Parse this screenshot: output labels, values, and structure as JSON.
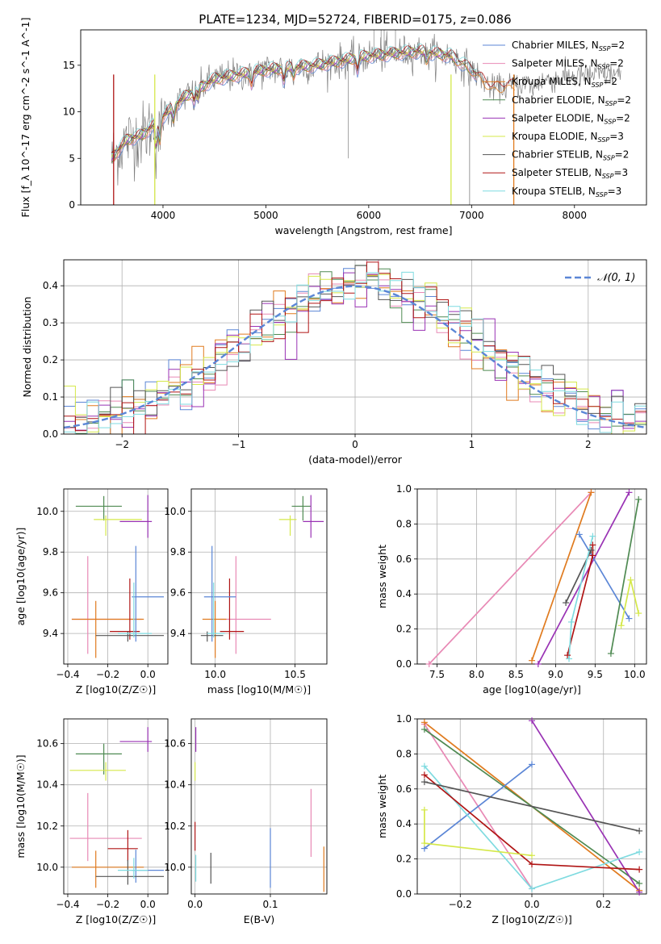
{
  "figure": {
    "title": "PLATE=1234, MJD=52724, FIBERID=0175, z=0.086"
  },
  "colors": {
    "Chabrier MILES": "#5b86d6",
    "Salpeter MILES": "#e889b5",
    "Kroupa MILES": "#e07b1f",
    "Chabrier ELODIE": "#4f8a52",
    "Salpeter ELODIE": "#9932b4",
    "Kroupa ELODIE": "#d5e84a",
    "Chabrier STELIB": "#555555",
    "Salpeter STELIB": "#b01515",
    "Kroupa STELIB": "#7fdbe0"
  },
  "chart_data": [
    {
      "id": "spectrum",
      "type": "line",
      "xlabel": "wavelength [Angstrom, rest frame]",
      "ylabel": "Flux [f_λ 10^-17 erg cm^-2 s^-1 A^-1]",
      "xlim": [
        3200,
        8700
      ],
      "ylim": [
        0,
        18.8
      ],
      "xticks": [
        4000,
        5000,
        6000,
        7000,
        8000
      ],
      "yticks": [
        0,
        5,
        10,
        15
      ],
      "grid": false,
      "legend_position": "top-right",
      "legend": [
        "Chabrier MILES, N_SSP=2",
        "Salpeter MILES, N_SSP=2",
        "Kroupa MILES, N_SSP=2",
        "Chabrier ELODIE, N_SSP=2",
        "Salpeter ELODIE, N_SSP=2",
        "Kroupa ELODIE, N_SSP=3",
        "Chabrier STELIB, N_SSP=2",
        "Salpeter STELIB, N_SSP=3",
        "Kroupa STELIB, N_SSP=3"
      ],
      "continuum": [
        [
          3500,
          5
        ],
        [
          3650,
          7
        ],
        [
          3800,
          7.5
        ],
        [
          4000,
          9.5
        ],
        [
          4200,
          11.5
        ],
        [
          4500,
          13.5
        ],
        [
          5000,
          14.5
        ],
        [
          5500,
          15
        ],
        [
          6000,
          16
        ],
        [
          6500,
          16.5
        ],
        [
          6800,
          16
        ],
        [
          7000,
          14.5
        ],
        [
          7200,
          12.5
        ],
        [
          7500,
          13
        ],
        [
          7800,
          13.5
        ],
        [
          8000,
          13.8
        ],
        [
          8200,
          14
        ],
        [
          8450,
          14
        ]
      ]
    },
    {
      "id": "residuals",
      "type": "histogram",
      "xlabel": "(data-model)/error",
      "ylabel": "Normed distribution",
      "xlim": [
        -2.5,
        2.5
      ],
      "ylim": [
        0,
        0.47
      ],
      "xticks": [
        -2,
        -1,
        0,
        1,
        2
      ],
      "yticks": [
        0.0,
        0.1,
        0.2,
        0.3,
        0.4
      ],
      "grid": true,
      "legend_position": "top-right",
      "reference_curve": "N(0,1)",
      "reference_color": "#5b86d6"
    },
    {
      "id": "age-vs-Z",
      "type": "scatter",
      "xlabel": "Z [log10(Z/Z☉)]",
      "ylabel": "age  [log10(age/yr)]",
      "xlim": [
        -0.42,
        0.1
      ],
      "ylim": [
        9.25,
        10.11
      ],
      "xticks": [
        -0.4,
        -0.2,
        0.0
      ],
      "yticks": [
        9.4,
        9.6,
        9.8,
        10.0
      ],
      "grid": true,
      "points": [
        {
          "series": "Chabrier ELODIE",
          "x": -0.22,
          "y": 10.025,
          "xerr": [
            0.14,
            0.09
          ],
          "yerr": [
            0.07,
            0.05
          ]
        },
        {
          "series": "Kroupa ELODIE",
          "x": -0.21,
          "y": 9.96,
          "xerr": [
            0.06,
            0.18
          ],
          "yerr": [
            0.08,
            0.02
          ]
        },
        {
          "series": "Salpeter ELODIE",
          "x": 0.0,
          "y": 9.95,
          "xerr": [
            0.14,
            0.02
          ],
          "yerr": [
            0.08,
            0.13
          ]
        },
        {
          "series": "Salpeter MILES",
          "x": -0.3,
          "y": 9.47,
          "xerr": [
            0.08,
            0.27
          ],
          "yerr": [
            0.17,
            0.31
          ]
        },
        {
          "series": "Kroupa MILES",
          "x": -0.26,
          "y": 9.47,
          "xerr": [
            0.12,
            0.24
          ],
          "yerr": [
            0.19,
            0.09
          ]
        },
        {
          "series": "Salpeter STELIB",
          "x": -0.09,
          "y": 9.41,
          "xerr": [
            0.1,
            0.05
          ],
          "yerr": [
            0.04,
            0.26
          ]
        },
        {
          "series": "Chabrier STELIB",
          "x": -0.1,
          "y": 9.39,
          "xerr": [
            0.16,
            0.18
          ],
          "yerr": [
            0.03,
            0.02
          ]
        },
        {
          "series": "Chabrier MILES",
          "x": -0.06,
          "y": 9.58,
          "xerr": [
            0.02,
            0.14
          ],
          "yerr": [
            0.22,
            0.25
          ]
        },
        {
          "series": "Kroupa STELIB",
          "x": -0.07,
          "y": 9.4,
          "xerr": [
            0.08,
            0.09
          ],
          "yerr": [
            0.02,
            0.25
          ]
        }
      ]
    },
    {
      "id": "age-vs-mass",
      "type": "scatter",
      "xlabel": "mass [log10(M/M☉)]",
      "ylabel": "",
      "xlim": [
        9.85,
        10.7
      ],
      "ylim": [
        9.25,
        10.11
      ],
      "xticks": [
        10.0,
        10.5
      ],
      "yticks": [
        9.4,
        9.6,
        9.8,
        10.0
      ],
      "grid": true,
      "points": [
        {
          "series": "Chabrier ELODIE",
          "x": 10.55,
          "y": 10.025,
          "xerr": [
            0.07,
            0.05
          ],
          "yerr": [
            0.07,
            0.05
          ]
        },
        {
          "series": "Kroupa ELODIE",
          "x": 10.47,
          "y": 9.96,
          "xerr": [
            0.07,
            0.04
          ],
          "yerr": [
            0.08,
            0.02
          ]
        },
        {
          "series": "Salpeter ELODIE",
          "x": 10.6,
          "y": 9.95,
          "xerr": [
            0.05,
            0.08
          ],
          "yerr": [
            0.08,
            0.13
          ]
        },
        {
          "series": "Salpeter MILES",
          "x": 10.13,
          "y": 9.47,
          "xerr": [
            0.1,
            0.22
          ],
          "yerr": [
            0.17,
            0.31
          ]
        },
        {
          "series": "Kroupa MILES",
          "x": 10.0,
          "y": 9.47,
          "xerr": [
            0.08,
            0.07
          ],
          "yerr": [
            0.19,
            0.09
          ]
        },
        {
          "series": "Salpeter STELIB",
          "x": 10.09,
          "y": 9.41,
          "xerr": [
            0.06,
            0.09
          ],
          "yerr": [
            0.04,
            0.26
          ]
        },
        {
          "series": "Chabrier STELIB",
          "x": 9.95,
          "y": 9.39,
          "xerr": [
            0.04,
            0.1
          ],
          "yerr": [
            0.03,
            0.02
          ]
        },
        {
          "series": "Chabrier MILES",
          "x": 9.98,
          "y": 9.58,
          "xerr": [
            0.05,
            0.15
          ],
          "yerr": [
            0.22,
            0.25
          ]
        },
        {
          "series": "Kroupa STELIB",
          "x": 9.99,
          "y": 9.4,
          "xerr": [
            0.04,
            0.07
          ],
          "yerr": [
            0.02,
            0.25
          ]
        }
      ]
    },
    {
      "id": "weight-vs-age",
      "type": "line",
      "xlabel": "age  [log10(age/yr)]",
      "ylabel": "mass weight",
      "xlim": [
        7.25,
        10.15
      ],
      "ylim": [
        0.0,
        1.0
      ],
      "xticks": [
        7.5,
        8.0,
        8.5,
        9.0,
        9.5,
        10.0
      ],
      "yticks": [
        0.0,
        0.2,
        0.4,
        0.6,
        0.8,
        1.0
      ],
      "grid": true,
      "series": [
        {
          "name": "Salpeter MILES",
          "x": [
            7.4,
            9.45
          ],
          "y": [
            0.0,
            0.98
          ]
        },
        {
          "name": "Kroupa MILES",
          "x": [
            8.7,
            9.45
          ],
          "y": [
            0.02,
            0.98
          ]
        },
        {
          "name": "Salpeter ELODIE",
          "x": [
            8.78,
            9.93
          ],
          "y": [
            0.0,
            0.98
          ]
        },
        {
          "name": "Chabrier MILES",
          "x": [
            9.3,
            9.93
          ],
          "y": [
            0.74,
            0.26
          ]
        },
        {
          "name": "Chabrier STELIB",
          "x": [
            9.13,
            9.45
          ],
          "y": [
            0.35,
            0.65
          ]
        },
        {
          "name": "Salpeter STELIB",
          "x": [
            9.15,
            9.47,
            9.47
          ],
          "y": [
            0.05,
            0.62,
            0.68
          ]
        },
        {
          "name": "Kroupa STELIB",
          "x": [
            9.17,
            9.2,
            9.47
          ],
          "y": [
            0.03,
            0.24,
            0.73
          ]
        },
        {
          "name": "Chabrier ELODIE",
          "x": [
            9.7,
            10.05
          ],
          "y": [
            0.06,
            0.94
          ]
        },
        {
          "name": "Kroupa ELODIE",
          "x": [
            9.83,
            9.95,
            10.05
          ],
          "y": [
            0.22,
            0.48,
            0.29
          ]
        }
      ]
    },
    {
      "id": "mass-vs-Z",
      "type": "scatter",
      "xlabel": "Z [log10(Z/Z☉)]",
      "ylabel": "mass [log10(M/M☉)]",
      "xlim": [
        -0.42,
        0.1
      ],
      "ylim": [
        9.87,
        10.72
      ],
      "xticks": [
        -0.4,
        -0.2,
        0.0
      ],
      "yticks": [
        10.0,
        10.2,
        10.4,
        10.6
      ],
      "grid": true,
      "points": [
        {
          "series": "Salpeter ELODIE",
          "x": 0.0,
          "y": 10.61,
          "xerr": [
            0.14,
            0.02
          ],
          "yerr": [
            0.05,
            0.07
          ]
        },
        {
          "series": "Chabrier ELODIE",
          "x": -0.22,
          "y": 10.55,
          "xerr": [
            0.14,
            0.09
          ],
          "yerr": [
            0.1,
            0.05
          ]
        },
        {
          "series": "Kroupa ELODIE",
          "x": -0.21,
          "y": 10.47,
          "xerr": [
            0.18,
            0.1
          ],
          "yerr": [
            0.05,
            0.04
          ]
        },
        {
          "series": "Salpeter MILES",
          "x": -0.3,
          "y": 10.14,
          "xerr": [
            0.09,
            0.27
          ],
          "yerr": [
            0.11,
            0.22
          ]
        },
        {
          "series": "Salpeter STELIB",
          "x": -0.1,
          "y": 10.09,
          "xerr": [
            0.1,
            0.05
          ],
          "yerr": [
            0.06,
            0.09
          ]
        },
        {
          "series": "Kroupa MILES",
          "x": -0.26,
          "y": 10.0,
          "xerr": [
            0.12,
            0.24
          ],
          "yerr": [
            0.1,
            0.08
          ]
        },
        {
          "series": "Chabrier MILES",
          "x": -0.06,
          "y": 9.985,
          "xerr": [
            0.02,
            0.14
          ],
          "yerr": [
            0.06,
            0.1
          ]
        },
        {
          "series": "Chabrier STELIB",
          "x": -0.1,
          "y": 9.955,
          "xerr": [
            0.16,
            0.18
          ],
          "yerr": [
            0.04,
            0.08
          ]
        },
        {
          "series": "Kroupa STELIB",
          "x": -0.07,
          "y": 9.985,
          "xerr": [
            0.08,
            0.07
          ],
          "yerr": [
            0.04,
            0.06
          ]
        }
      ]
    },
    {
      "id": "mass-vs-EBV",
      "type": "scatter",
      "xlabel": "E(B-V)",
      "ylabel": "",
      "xlim": [
        -0.005,
        0.175
      ],
      "ylim": [
        9.87,
        10.72
      ],
      "xticks": [
        0.0,
        0.1
      ],
      "yticks": [
        10.0,
        10.2,
        10.4,
        10.6
      ],
      "grid": true,
      "points": [
        {
          "series": "Salpeter ELODIE",
          "x": 0.001,
          "y": 10.61,
          "yerr": [
            0.05,
            0.07
          ]
        },
        {
          "series": "Kroupa ELODIE",
          "x": 0.0,
          "y": 10.47,
          "yerr": [
            0.05,
            0.04
          ]
        },
        {
          "series": "Salpeter STELIB",
          "x": 0.0,
          "y": 10.14,
          "yerr": [
            0.06,
            0.08
          ]
        },
        {
          "series": "Kroupa STELIB",
          "x": 0.001,
          "y": 10.0,
          "yerr": [
            0.07,
            0.06
          ]
        },
        {
          "series": "Chabrier STELIB",
          "x": 0.021,
          "y": 9.99,
          "yerr": [
            0.07,
            0.08
          ]
        },
        {
          "series": "Chabrier MILES",
          "x": 0.1,
          "y": 10.06,
          "yerr": [
            0.16,
            0.13
          ]
        },
        {
          "series": "Salpeter MILES",
          "x": 0.154,
          "y": 10.16,
          "yerr": [
            0.11,
            0.22
          ]
        },
        {
          "series": "Kroupa MILES",
          "x": 0.171,
          "y": 10.0,
          "yerr": [
            0.12,
            0.1
          ]
        }
      ]
    },
    {
      "id": "weight-vs-Z",
      "type": "line",
      "xlabel": "Z [log10(Z/Z☉)]",
      "ylabel": "mass weight",
      "xlim": [
        -0.32,
        0.32
      ],
      "ylim": [
        0.0,
        1.0
      ],
      "xticks": [
        -0.2,
        0.0,
        0.2
      ],
      "yticks": [
        0.0,
        0.2,
        0.4,
        0.6,
        0.8,
        1.0
      ],
      "grid": true,
      "series": [
        {
          "name": "Salpeter MILES",
          "x": [
            -0.3,
            0.0
          ],
          "y": [
            0.97,
            0.03
          ]
        },
        {
          "name": "Kroupa MILES",
          "x": [
            -0.3,
            0.3
          ],
          "y": [
            0.98,
            0.02
          ]
        },
        {
          "name": "Chabrier ELODIE",
          "x": [
            -0.3,
            0.3
          ],
          "y": [
            0.94,
            0.06
          ]
        },
        {
          "name": "Salpeter ELODIE",
          "x": [
            0.0,
            0.3
          ],
          "y": [
            0.99,
            0.01
          ]
        },
        {
          "name": "Chabrier MILES",
          "x": [
            -0.3,
            0.0
          ],
          "y": [
            0.26,
            0.74
          ]
        },
        {
          "name": "Kroupa STELIB",
          "x": [
            -0.3,
            0.0,
            0.3
          ],
          "y": [
            0.73,
            0.03,
            0.24
          ]
        },
        {
          "name": "Salpeter STELIB",
          "x": [
            -0.3,
            0.0,
            0.3
          ],
          "y": [
            0.68,
            0.17,
            0.14
          ]
        },
        {
          "name": "Chabrier STELIB",
          "x": [
            -0.3,
            0.3
          ],
          "y": [
            0.64,
            0.36
          ]
        },
        {
          "name": "Kroupa ELODIE",
          "x": [
            -0.3,
            -0.3,
            0.0
          ],
          "y": [
            0.48,
            0.29,
            0.22
          ]
        }
      ]
    }
  ]
}
